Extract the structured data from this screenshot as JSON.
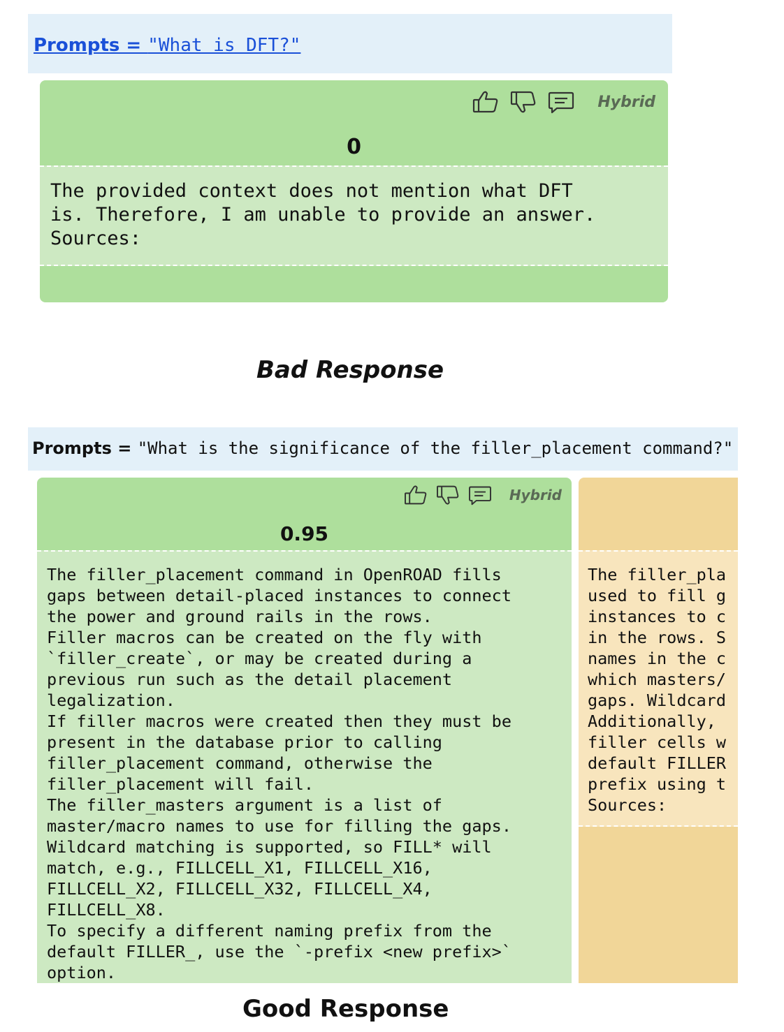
{
  "examples": [
    {
      "prompt_label": "Prompts = ",
      "prompt_text": "\"What is DFT?\"",
      "cards": [
        {
          "mode": "Hybrid",
          "score": "0",
          "answer": "The provided context does not mention what DFT\nis. Therefore, I am unable to provide an answer.\nSources:",
          "color": "#aedf9c"
        }
      ],
      "caption": "Bad Response"
    },
    {
      "prompt_label": "Prompts = ",
      "prompt_text": "\"What is the significance of the filler_placement command?\"",
      "cards": [
        {
          "mode": "Hybrid",
          "score": "0.95",
          "answer": "The filler_placement command in OpenROAD fills\ngaps between detail-placed instances to connect\nthe power and ground rails in the rows.\nFiller macros can be created on the fly with\n`filler_create`, or may be created during a\nprevious run such as the detail placement\nlegalization.\nIf filler macros were created then they must be\npresent in the database prior to calling\nfiller_placement command, otherwise the\nfiller_placement will fail.\nThe filler_masters argument is a list of\nmaster/macro names to use for filling the gaps.\nWildcard matching is supported, so FILL* will\nmatch, e.g., FILLCELL_X1, FILLCELL_X16,\nFILLCELL_X2, FILLCELL_X32, FILLCELL_X4,\nFILLCELL_X8.\nTo specify a different naming prefix from the\ndefault FILLER_, use the `-prefix <new prefix>`\noption.",
          "color": "#aedf9c"
        },
        {
          "answer": "The filler_pla\nused to fill g\ninstances to c\nin the rows. S\nnames in the c\nwhich masters/\ngaps. Wildcard\nAdditionally,\nfiller cells w\ndefault FILLER\nprefix using t\nSources:",
          "color": "#f1d698"
        }
      ],
      "caption": "Good Response"
    }
  ],
  "icons": [
    "thumbs-up-icon",
    "thumbs-down-icon",
    "comment-icon"
  ]
}
